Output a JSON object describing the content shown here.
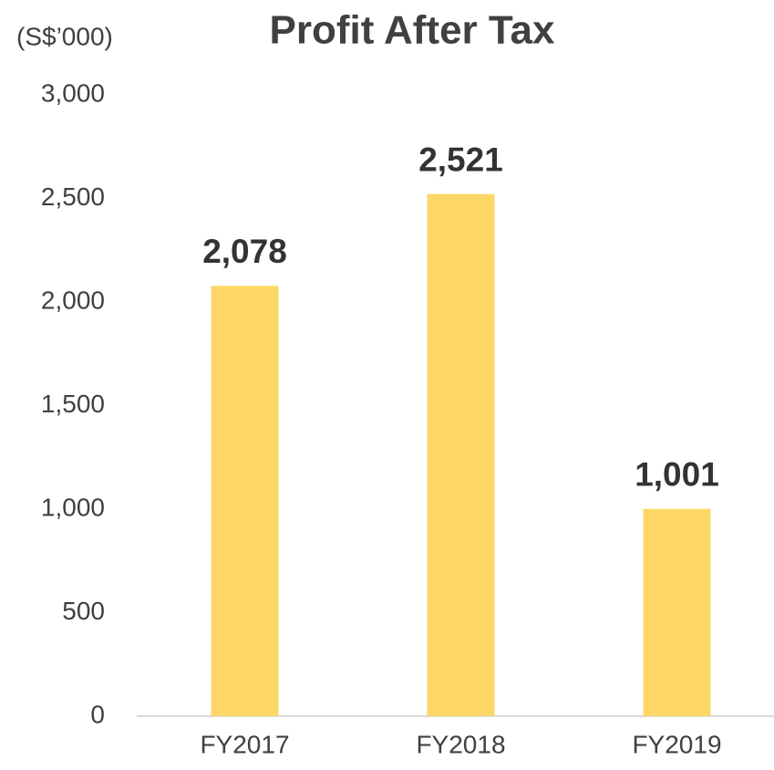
{
  "chart_data": {
    "type": "bar",
    "title": "Profit After Tax",
    "y_label": "(S$’000)",
    "categories": [
      "FY2017",
      "FY2018",
      "FY2019"
    ],
    "values": [
      2078,
      2521,
      1001
    ],
    "value_labels": [
      "2,078",
      "2,521",
      "1,001"
    ],
    "color": "#fdd766",
    "ylim": [
      0,
      3000
    ],
    "yticks": [
      0,
      500,
      {
        "value": 1000,
        "label": "1,000"
      },
      {
        "value": 1500,
        "label": "1,500"
      },
      {
        "value": 2000,
        "label": "2,000"
      },
      {
        "value": 2500,
        "label": "2,500"
      },
      {
        "value": 3000,
        "label": "3,000"
      }
    ],
    "grid": false
  }
}
